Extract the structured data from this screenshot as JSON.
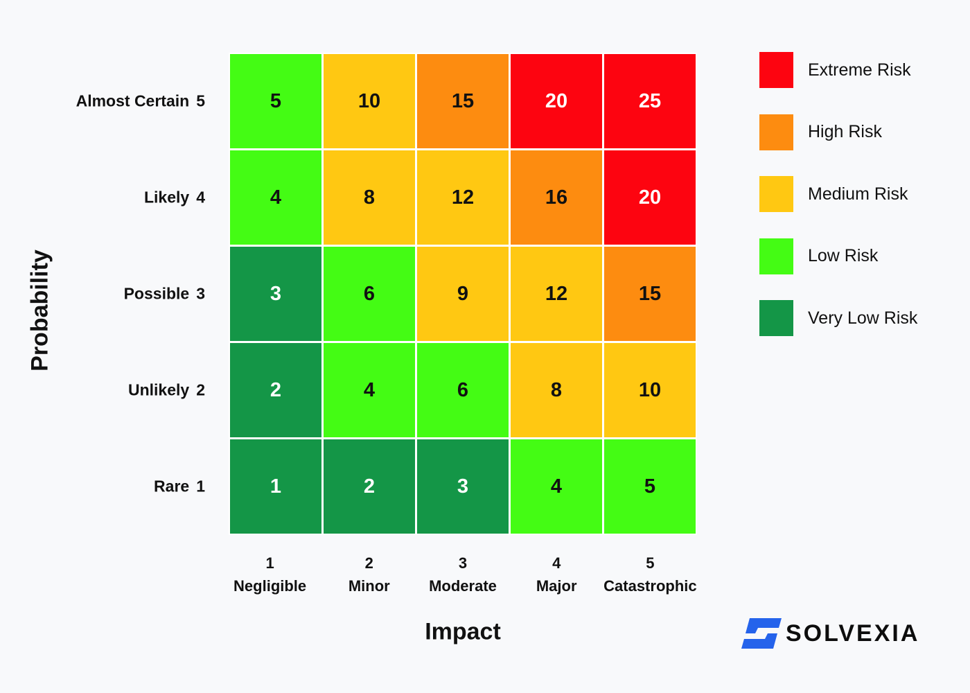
{
  "chart_data": {
    "type": "heatmap",
    "title": "",
    "xlabel": "Impact",
    "ylabel": "Probability",
    "x_categories": [
      {
        "num": "1",
        "name": "Negligible"
      },
      {
        "num": "2",
        "name": "Minor"
      },
      {
        "num": "3",
        "name": "Moderate"
      },
      {
        "num": "4",
        "name": "Major"
      },
      {
        "num": "5",
        "name": "Catastrophic"
      }
    ],
    "y_categories": [
      {
        "name": "Almost Certain",
        "num": "5"
      },
      {
        "name": "Likely",
        "num": "4"
      },
      {
        "name": "Possible",
        "num": "3"
      },
      {
        "name": "Unlikely",
        "num": "2"
      },
      {
        "name": "Rare",
        "num": "1"
      }
    ],
    "values": [
      [
        5,
        10,
        15,
        20,
        25
      ],
      [
        4,
        8,
        12,
        16,
        20
      ],
      [
        3,
        6,
        9,
        12,
        15
      ],
      [
        2,
        4,
        6,
        8,
        10
      ],
      [
        1,
        2,
        3,
        4,
        5
      ]
    ],
    "levels": [
      [
        "low",
        "medium",
        "high",
        "extreme",
        "extreme"
      ],
      [
        "low",
        "medium",
        "medium",
        "high",
        "extreme"
      ],
      [
        "very_low",
        "low",
        "medium",
        "medium",
        "high"
      ],
      [
        "very_low",
        "low",
        "low",
        "medium",
        "medium"
      ],
      [
        "very_low",
        "very_low",
        "very_low",
        "low",
        "low"
      ]
    ],
    "legend": [
      {
        "key": "extreme",
        "label": "Extreme Risk",
        "color": "#fd0410"
      },
      {
        "key": "high",
        "label": "High Risk",
        "color": "#fd8c10"
      },
      {
        "key": "medium",
        "label": "Medium Risk",
        "color": "#ffc812"
      },
      {
        "key": "low",
        "label": "Low Risk",
        "color": "#44fc14"
      },
      {
        "key": "very_low",
        "label": "Very Low Risk",
        "color": "#149647"
      }
    ]
  },
  "brand": {
    "name": "SOLVEXIA",
    "color": "#2563eb"
  }
}
